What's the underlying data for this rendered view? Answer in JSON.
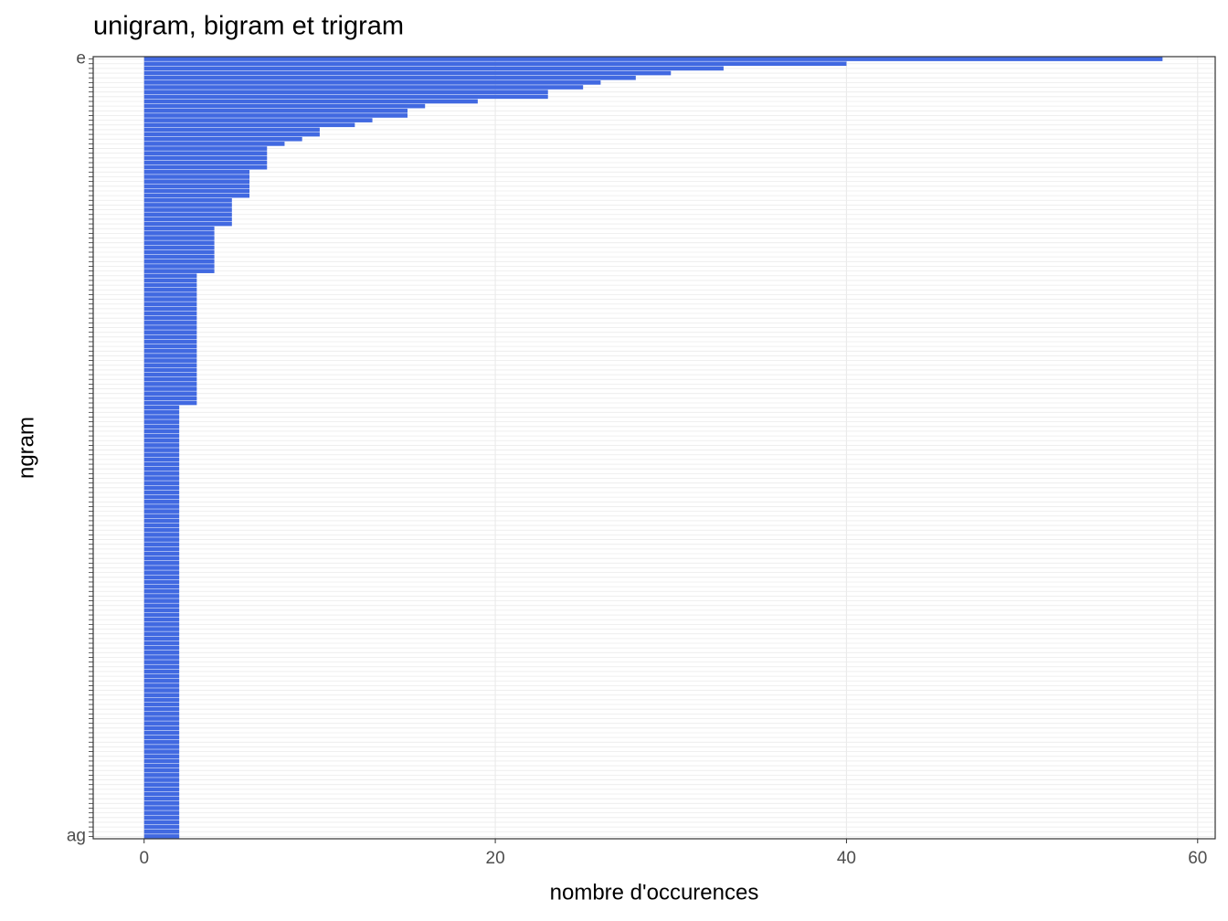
{
  "chart_data": {
    "type": "barh",
    "title": "unigram, bigram et trigram",
    "x_label": "nombre d'occurences",
    "y_label": "ngram",
    "color": "#4169e1",
    "grid": true,
    "xlim": [
      -2.9,
      61
    ],
    "xticks": [
      0,
      20,
      40,
      60
    ],
    "categories": [
      "e",
      null,
      null,
      null,
      null,
      null,
      null,
      null,
      null,
      null,
      null,
      null,
      null,
      null,
      null,
      null,
      null,
      null,
      null,
      null,
      null,
      null,
      null,
      null,
      null,
      null,
      null,
      null,
      null,
      null,
      null,
      null,
      null,
      null,
      null,
      null,
      null,
      null,
      null,
      null,
      null,
      null,
      null,
      null,
      null,
      null,
      null,
      null,
      null,
      null,
      null,
      null,
      null,
      null,
      null,
      null,
      null,
      null,
      null,
      null,
      null,
      null,
      null,
      null,
      null,
      null,
      null,
      null,
      null,
      null,
      null,
      null,
      null,
      null,
      null,
      null,
      null,
      null,
      null,
      null,
      null,
      null,
      null,
      null,
      null,
      null,
      null,
      null,
      null,
      null,
      null,
      null,
      null,
      null,
      null,
      null,
      null,
      null,
      null,
      null,
      null,
      null,
      null,
      null,
      null,
      null,
      null,
      null,
      null,
      null,
      null,
      null,
      null,
      null,
      null,
      null,
      null,
      null,
      null,
      null,
      null,
      null,
      null,
      null,
      null,
      null,
      null,
      null,
      null,
      null,
      null,
      null,
      null,
      null,
      null,
      null,
      null,
      null,
      null,
      null,
      null,
      null,
      null,
      null,
      null,
      null,
      null,
      null,
      null,
      null,
      null,
      null,
      null,
      null,
      null,
      null,
      null,
      null,
      null,
      null,
      null,
      null,
      null,
      null,
      null,
      "ag"
    ],
    "values": [
      58,
      40,
      33,
      30,
      28,
      26,
      25,
      23,
      23,
      19,
      16,
      15,
      15,
      13,
      12,
      10,
      10,
      9,
      8,
      7,
      7,
      7,
      7,
      7,
      6,
      6,
      6,
      6,
      6,
      6,
      5,
      5,
      5,
      5,
      5,
      5,
      4,
      4,
      4,
      4,
      4,
      4,
      4,
      4,
      4,
      4,
      3,
      3,
      3,
      3,
      3,
      3,
      3,
      3,
      3,
      3,
      3,
      3,
      3,
      3,
      3,
      3,
      3,
      3,
      3,
      3,
      3,
      3,
      3,
      3,
      3,
      3,
      3,
      3,
      2,
      2,
      2,
      2,
      2,
      2,
      2,
      2,
      2,
      2,
      2,
      2,
      2,
      2,
      2,
      2,
      2,
      2,
      2,
      2,
      2,
      2,
      2,
      2,
      2,
      2,
      2,
      2,
      2,
      2,
      2,
      2,
      2,
      2,
      2,
      2,
      2,
      2,
      2,
      2,
      2,
      2,
      2,
      2,
      2,
      2,
      2,
      2,
      2,
      2,
      2,
      2,
      2,
      2,
      2,
      2,
      2,
      2,
      2,
      2,
      2,
      2,
      2,
      2,
      2,
      2,
      2,
      2,
      2,
      2,
      2,
      2,
      2,
      2,
      2,
      2,
      2,
      2,
      2,
      2,
      2,
      2,
      2,
      2,
      2,
      2,
      2,
      2,
      2,
      2,
      2,
      2
    ]
  }
}
